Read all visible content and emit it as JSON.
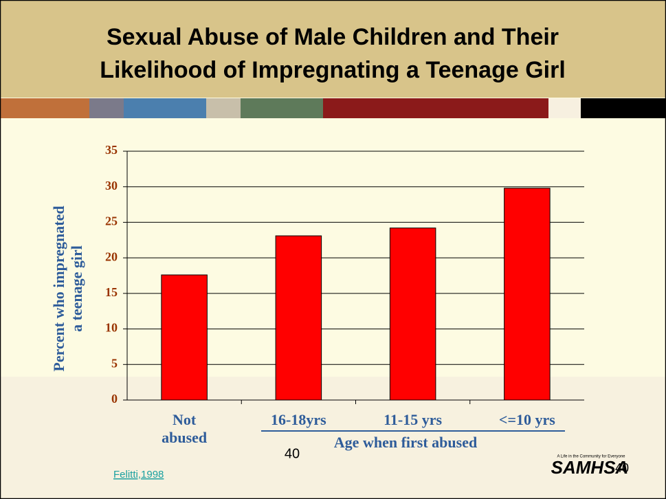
{
  "slide": {
    "title_lines": [
      "Sexual Abuse of Male Children and Their",
      "Likelihood of  Impregnating a Teenage Girl"
    ],
    "page_number": "40",
    "citation": "Felitti,1998",
    "logo": "SAMHSA",
    "logo_tagline": "A Life in the Community for Everyone",
    "logo_page": "40"
  },
  "chart_data": {
    "type": "bar",
    "categories": [
      "Not abused",
      "16-18yrs",
      "11-15 yrs",
      "<=10 yrs"
    ],
    "values": [
      17.6,
      23.1,
      24.2,
      29.8
    ],
    "color": "#ff0000",
    "x_label": "Age when first abused",
    "y_label": [
      "Percent who impregnated",
      "a teenage girl"
    ],
    "ylim": [
      0,
      35
    ],
    "yticks": [
      0,
      5,
      10,
      15,
      20,
      25,
      30,
      35
    ],
    "grid": true
  }
}
